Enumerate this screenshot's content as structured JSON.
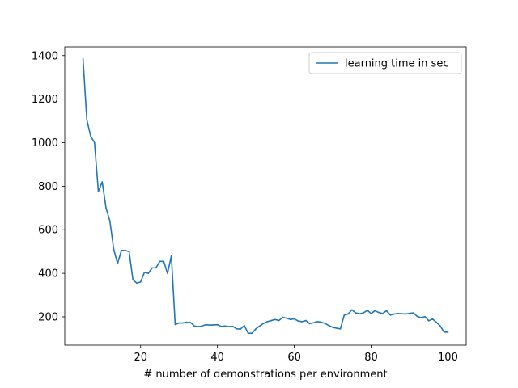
{
  "chart_data": {
    "type": "line",
    "title": "",
    "xlabel": "# number of demonstrations per environment",
    "ylabel": "",
    "xlim": [
      0.25,
      104.75
    ],
    "ylim": [
      70,
      1440
    ],
    "xticks": [
      20,
      40,
      60,
      80,
      100
    ],
    "yticks": [
      200,
      400,
      600,
      800,
      1000,
      1200,
      1400
    ],
    "grid": false,
    "legend_position": "top-right",
    "series": [
      {
        "name": "learning time in sec",
        "color": "#1f77b4",
        "x": [
          5,
          6,
          7,
          8,
          9,
          10,
          11,
          12,
          13,
          14,
          15,
          16,
          17,
          18,
          19,
          20,
          21,
          22,
          23,
          24,
          25,
          26,
          27,
          28,
          29,
          30,
          31,
          32,
          33,
          34,
          35,
          36,
          37,
          38,
          39,
          40,
          41,
          42,
          43,
          44,
          45,
          46,
          47,
          48,
          49,
          50,
          51,
          52,
          53,
          54,
          55,
          56,
          57,
          58,
          59,
          60,
          61,
          62,
          63,
          64,
          65,
          66,
          67,
          68,
          69,
          70,
          71,
          72,
          73,
          74,
          75,
          76,
          77,
          78,
          79,
          80,
          81,
          82,
          83,
          84,
          85,
          86,
          87,
          88,
          89,
          90,
          91,
          92,
          93,
          94,
          95,
          96,
          97,
          98,
          99,
          100
        ],
        "y": [
          1385,
          1105,
          1030,
          1000,
          775,
          820,
          700,
          640,
          510,
          445,
          505,
          505,
          500,
          370,
          355,
          360,
          405,
          400,
          425,
          425,
          455,
          455,
          400,
          480,
          165,
          172,
          172,
          175,
          174,
          158,
          155,
          158,
          164,
          162,
          163,
          164,
          156,
          158,
          155,
          156,
          145,
          144,
          160,
          125,
          125,
          145,
          158,
          170,
          178,
          183,
          188,
          183,
          198,
          194,
          188,
          191,
          181,
          178,
          183,
          169,
          173,
          178,
          176,
          170,
          160,
          152,
          148,
          145,
          208,
          213,
          232,
          218,
          214,
          218,
          230,
          215,
          228,
          220,
          215,
          228,
          208,
          213,
          215,
          214,
          213,
          216,
          218,
          202,
          196,
          201,
          182,
          190,
          175,
          158,
          130,
          130
        ]
      }
    ]
  }
}
